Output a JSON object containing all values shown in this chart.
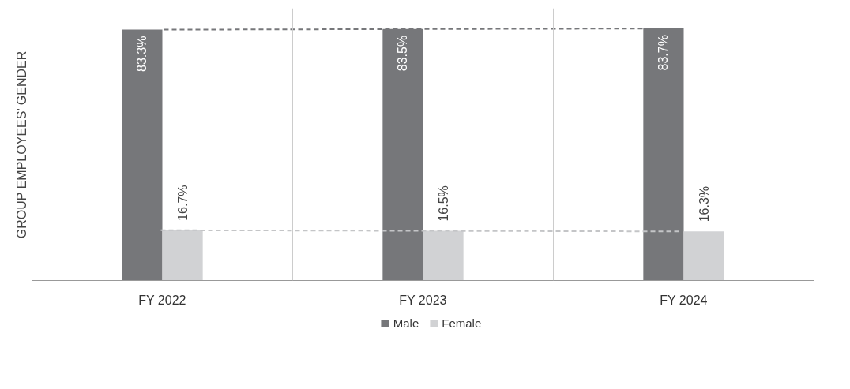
{
  "chart_data": {
    "type": "bar",
    "ylabel": "GROUP EMPLOYEES’ GENDER",
    "categories": [
      "FY 2022",
      "FY 2023",
      "FY 2024"
    ],
    "series": [
      {
        "name": "Male",
        "color": "#76777a",
        "values": [
          83.3,
          83.5,
          83.7
        ],
        "value_labels": [
          "83.3%",
          "83.5%",
          "83.7%"
        ]
      },
      {
        "name": "Female",
        "color": "#d1d2d4",
        "values": [
          16.7,
          16.5,
          16.3
        ],
        "value_labels": [
          "16.7%",
          "16.5%",
          "16.3%"
        ]
      },
      {
        "type": "line",
        "color": "#76777a",
        "line_style": "dashed",
        "values": [
          83.3,
          83.5,
          83.7
        ]
      },
      {
        "type": "line",
        "color": "#c4c5c7",
        "line_style": "dashed",
        "values": [
          16.7,
          16.5,
          16.3
        ]
      }
    ],
    "grid": "x",
    "legend": "bottom"
  }
}
